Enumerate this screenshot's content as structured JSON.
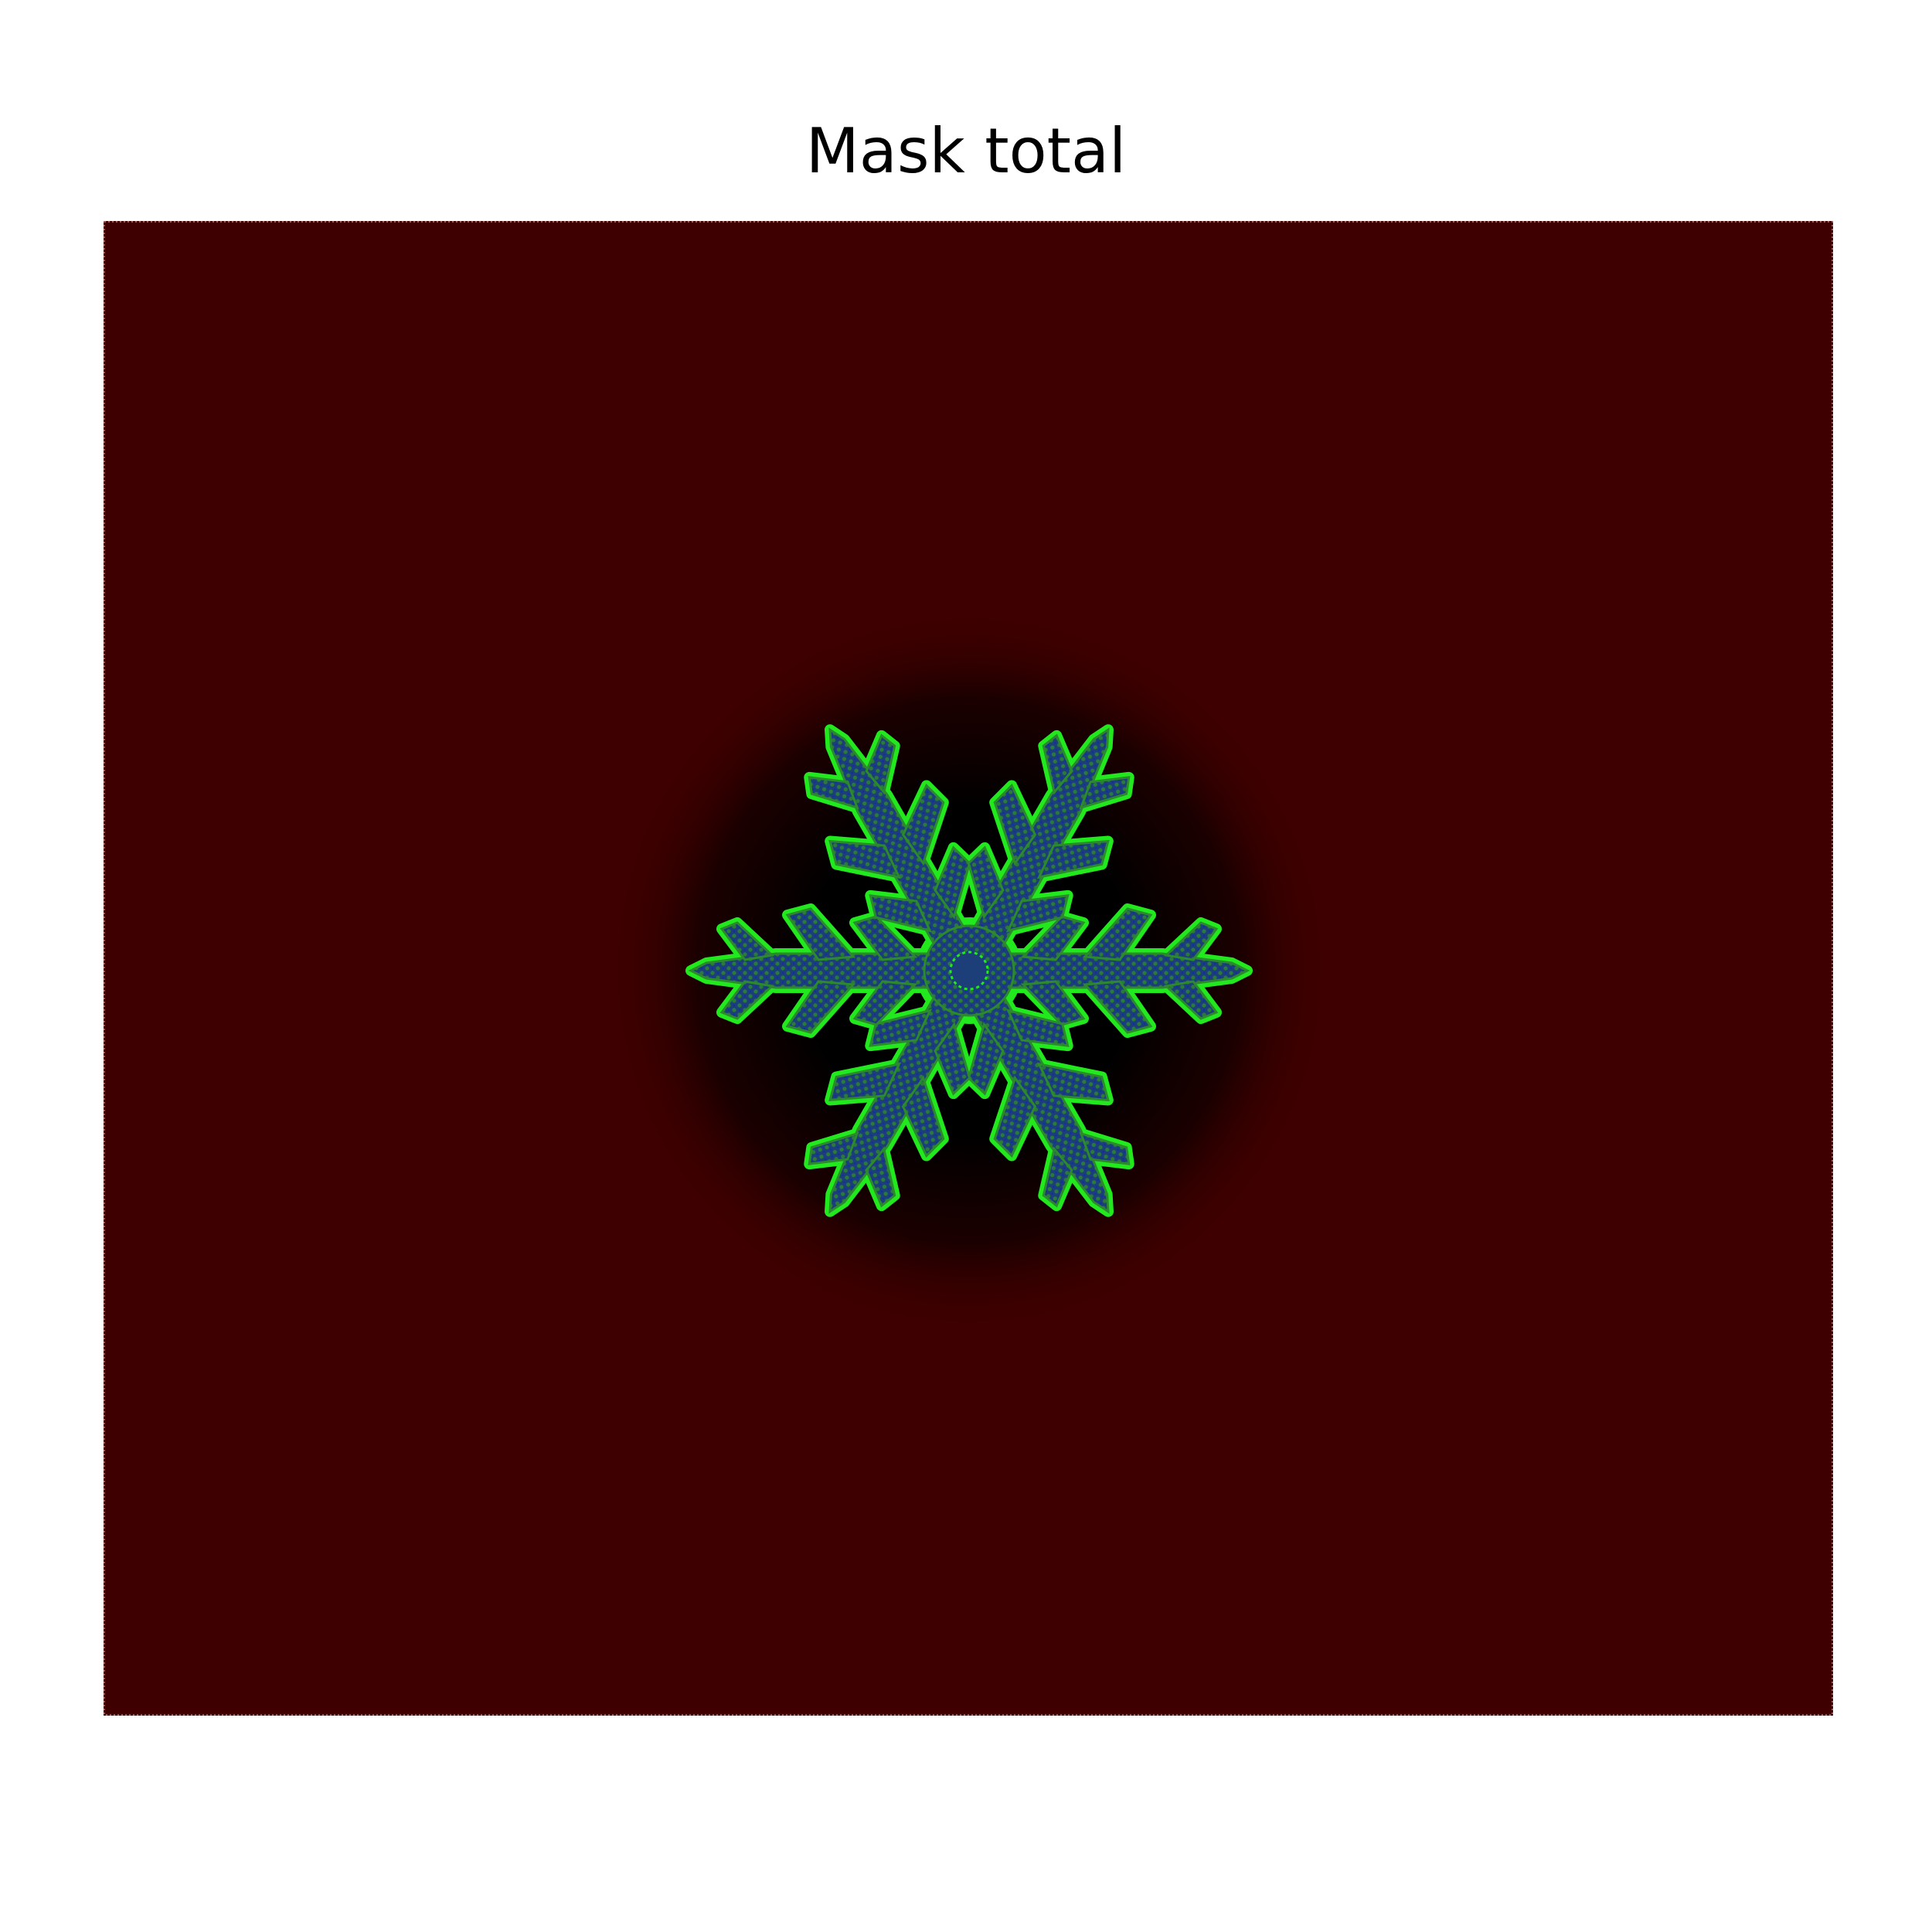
{
  "title": "Mask total",
  "colors": {
    "background": "#ffffff",
    "field": "#3e0000",
    "halo": "#000000",
    "crystal_fill": "#1c3f7a",
    "crystal_edge": "#22e81e",
    "crystal_mid": "#2c8a2c",
    "border_dot": "#a05a5a"
  },
  "crystal": {
    "shape": "six-armed dendritic snowflake",
    "arms": 6
  }
}
